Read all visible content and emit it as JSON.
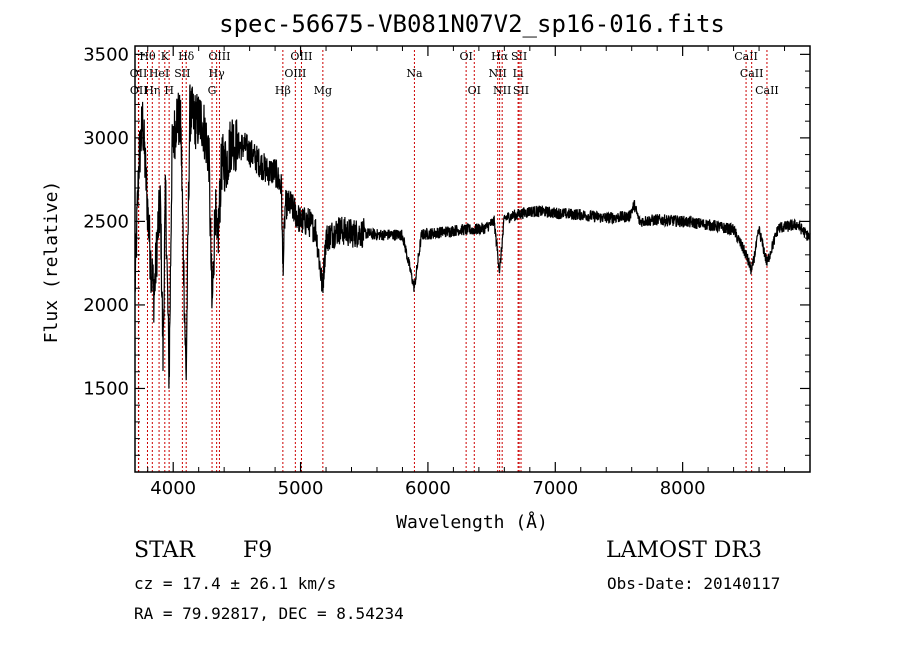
{
  "chart_data": {
    "type": "line",
    "title": "spec-56675-VB081N07V2_sp16-016.fits",
    "xlabel": "Wavelength (Å)",
    "ylabel": "Flux (relative)",
    "xlim": [
      3700,
      9000
    ],
    "ylim": [
      1000,
      3550
    ],
    "xticks": [
      4000,
      5000,
      6000,
      7000,
      8000
    ],
    "yticks": [
      1500,
      2000,
      2500,
      3000,
      3500
    ],
    "spectrum_anchors": [
      [
        3700,
        2100
      ],
      [
        3730,
        2850
      ],
      [
        3760,
        3100
      ],
      [
        3790,
        2700
      ],
      [
        3820,
        2300
      ],
      [
        3850,
        2050
      ],
      [
        3880,
        2450
      ],
      [
        3900,
        2600
      ],
      [
        3920,
        1700
      ],
      [
        3940,
        2700
      ],
      [
        3968,
        1550
      ],
      [
        3990,
        2900
      ],
      [
        4030,
        3150
      ],
      [
        4060,
        3050
      ],
      [
        4101,
        1550
      ],
      [
        4130,
        3150
      ],
      [
        4180,
        3100
      ],
      [
        4230,
        3100
      ],
      [
        4280,
        2900
      ],
      [
        4305,
        1950
      ],
      [
        4330,
        2600
      ],
      [
        4345,
        2300
      ],
      [
        4380,
        2850
      ],
      [
        4420,
        2850
      ],
      [
        4460,
        3000
      ],
      [
        4500,
        2950
      ],
      [
        4560,
        2950
      ],
      [
        4620,
        2900
      ],
      [
        4680,
        2850
      ],
      [
        4740,
        2800
      ],
      [
        4800,
        2800
      ],
      [
        4850,
        2700
      ],
      [
        4861,
        2200
      ],
      [
        4880,
        2600
      ],
      [
        4920,
        2600
      ],
      [
        4960,
        2550
      ],
      [
        5000,
        2500
      ],
      [
        5060,
        2500
      ],
      [
        5120,
        2450
      ],
      [
        5172,
        2100
      ],
      [
        5200,
        2400
      ],
      [
        5300,
        2450
      ],
      [
        5400,
        2430
      ],
      [
        5500,
        2430
      ],
      [
        5600,
        2420
      ],
      [
        5700,
        2420
      ],
      [
        5800,
        2420
      ],
      [
        5893,
        2100
      ],
      [
        5950,
        2420
      ],
      [
        6050,
        2430
      ],
      [
        6150,
        2440
      ],
      [
        6250,
        2450
      ],
      [
        6350,
        2450
      ],
      [
        6450,
        2460
      ],
      [
        6520,
        2500
      ],
      [
        6563,
        2200
      ],
      [
        6600,
        2520
      ],
      [
        6700,
        2540
      ],
      [
        6800,
        2560
      ],
      [
        6900,
        2560
      ],
      [
        7000,
        2550
      ],
      [
        7200,
        2540
      ],
      [
        7400,
        2520
      ],
      [
        7580,
        2530
      ],
      [
        7620,
        2600
      ],
      [
        7660,
        2500
      ],
      [
        7800,
        2510
      ],
      [
        8000,
        2500
      ],
      [
        8200,
        2480
      ],
      [
        8400,
        2450
      ],
      [
        8498,
        2300
      ],
      [
        8542,
        2200
      ],
      [
        8600,
        2450
      ],
      [
        8662,
        2250
      ],
      [
        8750,
        2460
      ],
      [
        8900,
        2480
      ],
      [
        9000,
        2400
      ]
    ],
    "line_markers": [
      {
        "label": "OII",
        "wavelength": 3727,
        "row": 1
      },
      {
        "label": "OII",
        "wavelength": 3729,
        "row": 2
      },
      {
        "label": "Hθ",
        "wavelength": 3798,
        "row": 0
      },
      {
        "label": "Hη",
        "wavelength": 3836,
        "row": 2
      },
      {
        "label": "HeI",
        "wavelength": 3889,
        "row": 1
      },
      {
        "label": "K",
        "wavelength": 3934,
        "row": 0
      },
      {
        "label": "H",
        "wavelength": 3968,
        "row": 2
      },
      {
        "label": "SII",
        "wavelength": 4072,
        "row": 1
      },
      {
        "label": "Hδ",
        "wavelength": 4102,
        "row": 0
      },
      {
        "label": "G",
        "wavelength": 4305,
        "row": 2
      },
      {
        "label": "Hγ",
        "wavelength": 4341,
        "row": 1
      },
      {
        "label": "OIII",
        "wavelength": 4363,
        "row": 0
      },
      {
        "label": "Hβ",
        "wavelength": 4861,
        "row": 2
      },
      {
        "label": "OIII",
        "wavelength": 4959,
        "row": 1
      },
      {
        "label": "OIII",
        "wavelength": 5007,
        "row": 0
      },
      {
        "label": "Mg",
        "wavelength": 5175,
        "row": 2
      },
      {
        "label": "Na",
        "wavelength": 5894,
        "row": 1
      },
      {
        "label": "OI",
        "wavelength": 6300,
        "row": 0
      },
      {
        "label": "OI",
        "wavelength": 6364,
        "row": 2
      },
      {
        "label": "NII",
        "wavelength": 6548,
        "row": 1
      },
      {
        "label": "Hα",
        "wavelength": 6563,
        "row": 0
      },
      {
        "label": "NII",
        "wavelength": 6583,
        "row": 2
      },
      {
        "label": "Li",
        "wavelength": 6708,
        "row": 1
      },
      {
        "label": "SII",
        "wavelength": 6716,
        "row": 0
      },
      {
        "label": "SII",
        "wavelength": 6731,
        "row": 2
      },
      {
        "label": "CaII",
        "wavelength": 8498,
        "row": 0
      },
      {
        "label": "CaII",
        "wavelength": 8542,
        "row": 1
      },
      {
        "label": "CaII",
        "wavelength": 8662,
        "row": 2
      }
    ],
    "marker_color": "#cc0000"
  },
  "info": {
    "class": "STAR",
    "subclass": "F9",
    "survey": "LAMOST DR3",
    "cz": "cz = 17.4 ± 26.1 km/s",
    "obs_date": "Obs-Date: 20140117",
    "radec": "RA =  79.92817, DEC =   8.54234"
  }
}
